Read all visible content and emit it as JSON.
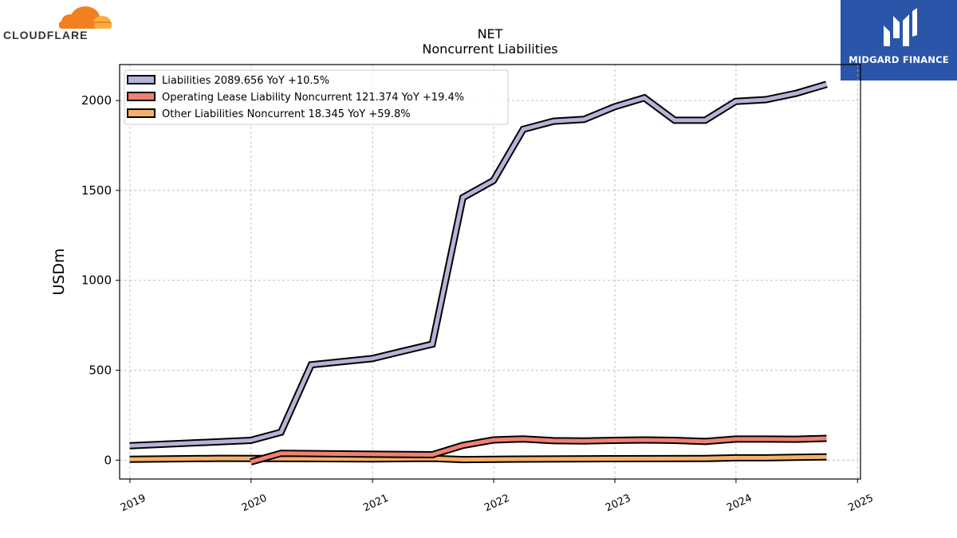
{
  "brand": {
    "name": "CLOUDFLARE",
    "color": "#f38020"
  },
  "finance": {
    "name": "MIDGARD FINANCE",
    "background": "#2a55a8"
  },
  "chart_data": {
    "type": "line",
    "title": "NET",
    "subtitle": "Noncurrent  Liabilities",
    "ylabel": "USDm",
    "xlabel": "",
    "xlim": [
      "2018-12-01",
      "2025-01-10"
    ],
    "ylim": [
      -105,
      2200
    ],
    "x_ticks": [
      "2019",
      "2020",
      "2021",
      "2022",
      "2023",
      "2024",
      "2025"
    ],
    "y_ticks": [
      0,
      500,
      1000,
      1500,
      2000
    ],
    "grid": true,
    "legend_position": "top-left",
    "series": [
      {
        "name": "Liabilities",
        "legend": "Liabilities  2089.656 YoY +10.5%",
        "color": "#b7b2d8",
        "points": [
          [
            "2018-12-31",
            80
          ],
          [
            "2019-12-31",
            110
          ],
          [
            "2020-03-31",
            155
          ],
          [
            "2020-06-30",
            530
          ],
          [
            "2020-12-31",
            565
          ],
          [
            "2021-03-31",
            605
          ],
          [
            "2021-06-30",
            645
          ],
          [
            "2021-09-30",
            1460
          ],
          [
            "2021-12-31",
            1555
          ],
          [
            "2022-03-31",
            1840
          ],
          [
            "2022-06-30",
            1885
          ],
          [
            "2022-09-30",
            1895
          ],
          [
            "2022-12-31",
            1965
          ],
          [
            "2023-03-31",
            2015
          ],
          [
            "2023-06-30",
            1890
          ],
          [
            "2023-09-30",
            1890
          ],
          [
            "2023-12-31",
            1995
          ],
          [
            "2024-03-31",
            2005
          ],
          [
            "2024-06-30",
            2040
          ],
          [
            "2024-09-30",
            2090
          ]
        ]
      },
      {
        "name": "Operating Lease Liability Noncurrent",
        "legend": "Operating Lease Liability Noncurrent  121.374 YoY +19.4%",
        "color": "#f08070",
        "points": [
          [
            "2019-12-31",
            -10
          ],
          [
            "2020-03-31",
            38
          ],
          [
            "2020-12-31",
            33
          ],
          [
            "2021-06-30",
            30
          ],
          [
            "2021-09-30",
            82
          ],
          [
            "2021-12-31",
            112
          ],
          [
            "2022-03-31",
            118
          ],
          [
            "2022-06-30",
            108
          ],
          [
            "2022-09-30",
            107
          ],
          [
            "2022-12-31",
            110
          ],
          [
            "2023-03-31",
            112
          ],
          [
            "2023-06-30",
            110
          ],
          [
            "2023-09-30",
            104
          ],
          [
            "2023-12-31",
            117
          ],
          [
            "2024-03-31",
            117
          ],
          [
            "2024-06-30",
            116
          ],
          [
            "2024-09-30",
            121
          ]
        ]
      },
      {
        "name": "Other Liabilities Noncurrent",
        "legend": "Other Liabilities Noncurrent  18.345 YoY +59.8%",
        "color": "#f4b06a",
        "points": [
          [
            "2018-12-31",
            5
          ],
          [
            "2019-09-30",
            10
          ],
          [
            "2020-12-31",
            7
          ],
          [
            "2021-06-30",
            10
          ],
          [
            "2021-09-30",
            3
          ],
          [
            "2022-03-31",
            6
          ],
          [
            "2022-12-31",
            8
          ],
          [
            "2023-09-30",
            9
          ],
          [
            "2023-12-31",
            13
          ],
          [
            "2024-03-31",
            13
          ],
          [
            "2024-06-30",
            16
          ],
          [
            "2024-09-30",
            18
          ]
        ]
      }
    ]
  }
}
